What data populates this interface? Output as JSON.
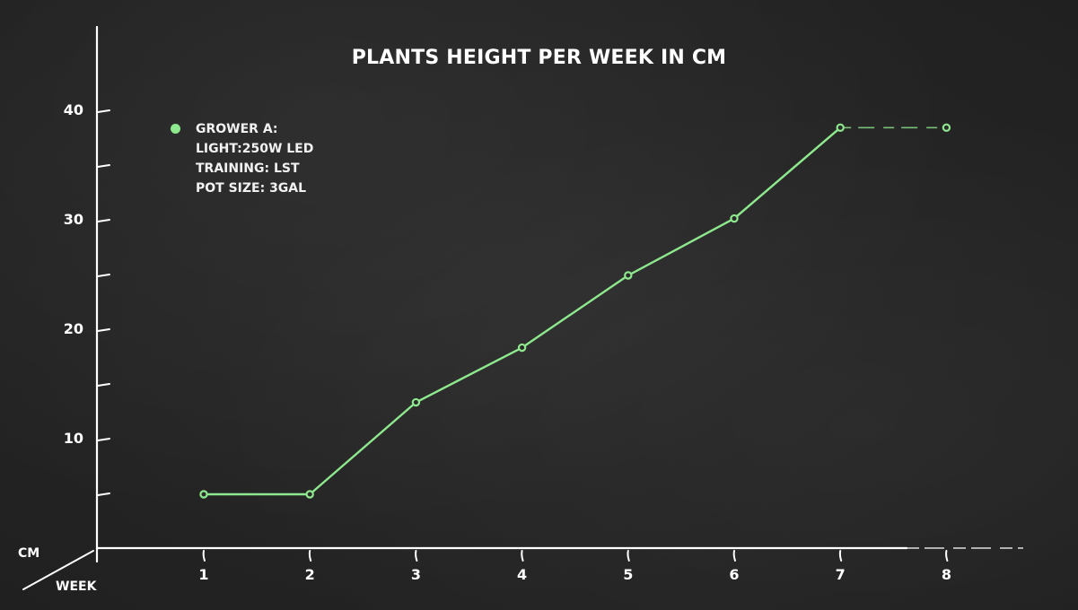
{
  "chart_data": {
    "type": "line",
    "title": "PLANTS HEIGHT PER WEEK IN CM",
    "xlabel": "WEEK",
    "ylabel": "CM",
    "categories": [
      "1",
      "2",
      "3",
      "4",
      "5",
      "6",
      "7",
      "8"
    ],
    "series": [
      {
        "name": "GROWER A",
        "values": [
          5,
          5,
          13.4,
          18.4,
          25,
          30.2,
          38.5,
          38.5
        ],
        "color": "#8ee88e",
        "note": "segment from week 7 to week 8 is dashed"
      }
    ],
    "yticks": [
      10,
      20,
      30,
      40
    ],
    "yminor_ticks": [
      5,
      15,
      25,
      35
    ],
    "ylim": [
      0,
      45
    ],
    "grid": false,
    "legend_position": "top-left",
    "legend": {
      "marker_color": "#8ee88e",
      "lines": [
        "GROWER A:",
        "LIGHT:250W LED",
        "TRAINING: LST",
        "POT SIZE: 3GAL"
      ]
    }
  },
  "colors": {
    "background": "#232323",
    "axis": "#ffffff",
    "series": "#8ee88e",
    "text": "#ffffff"
  }
}
